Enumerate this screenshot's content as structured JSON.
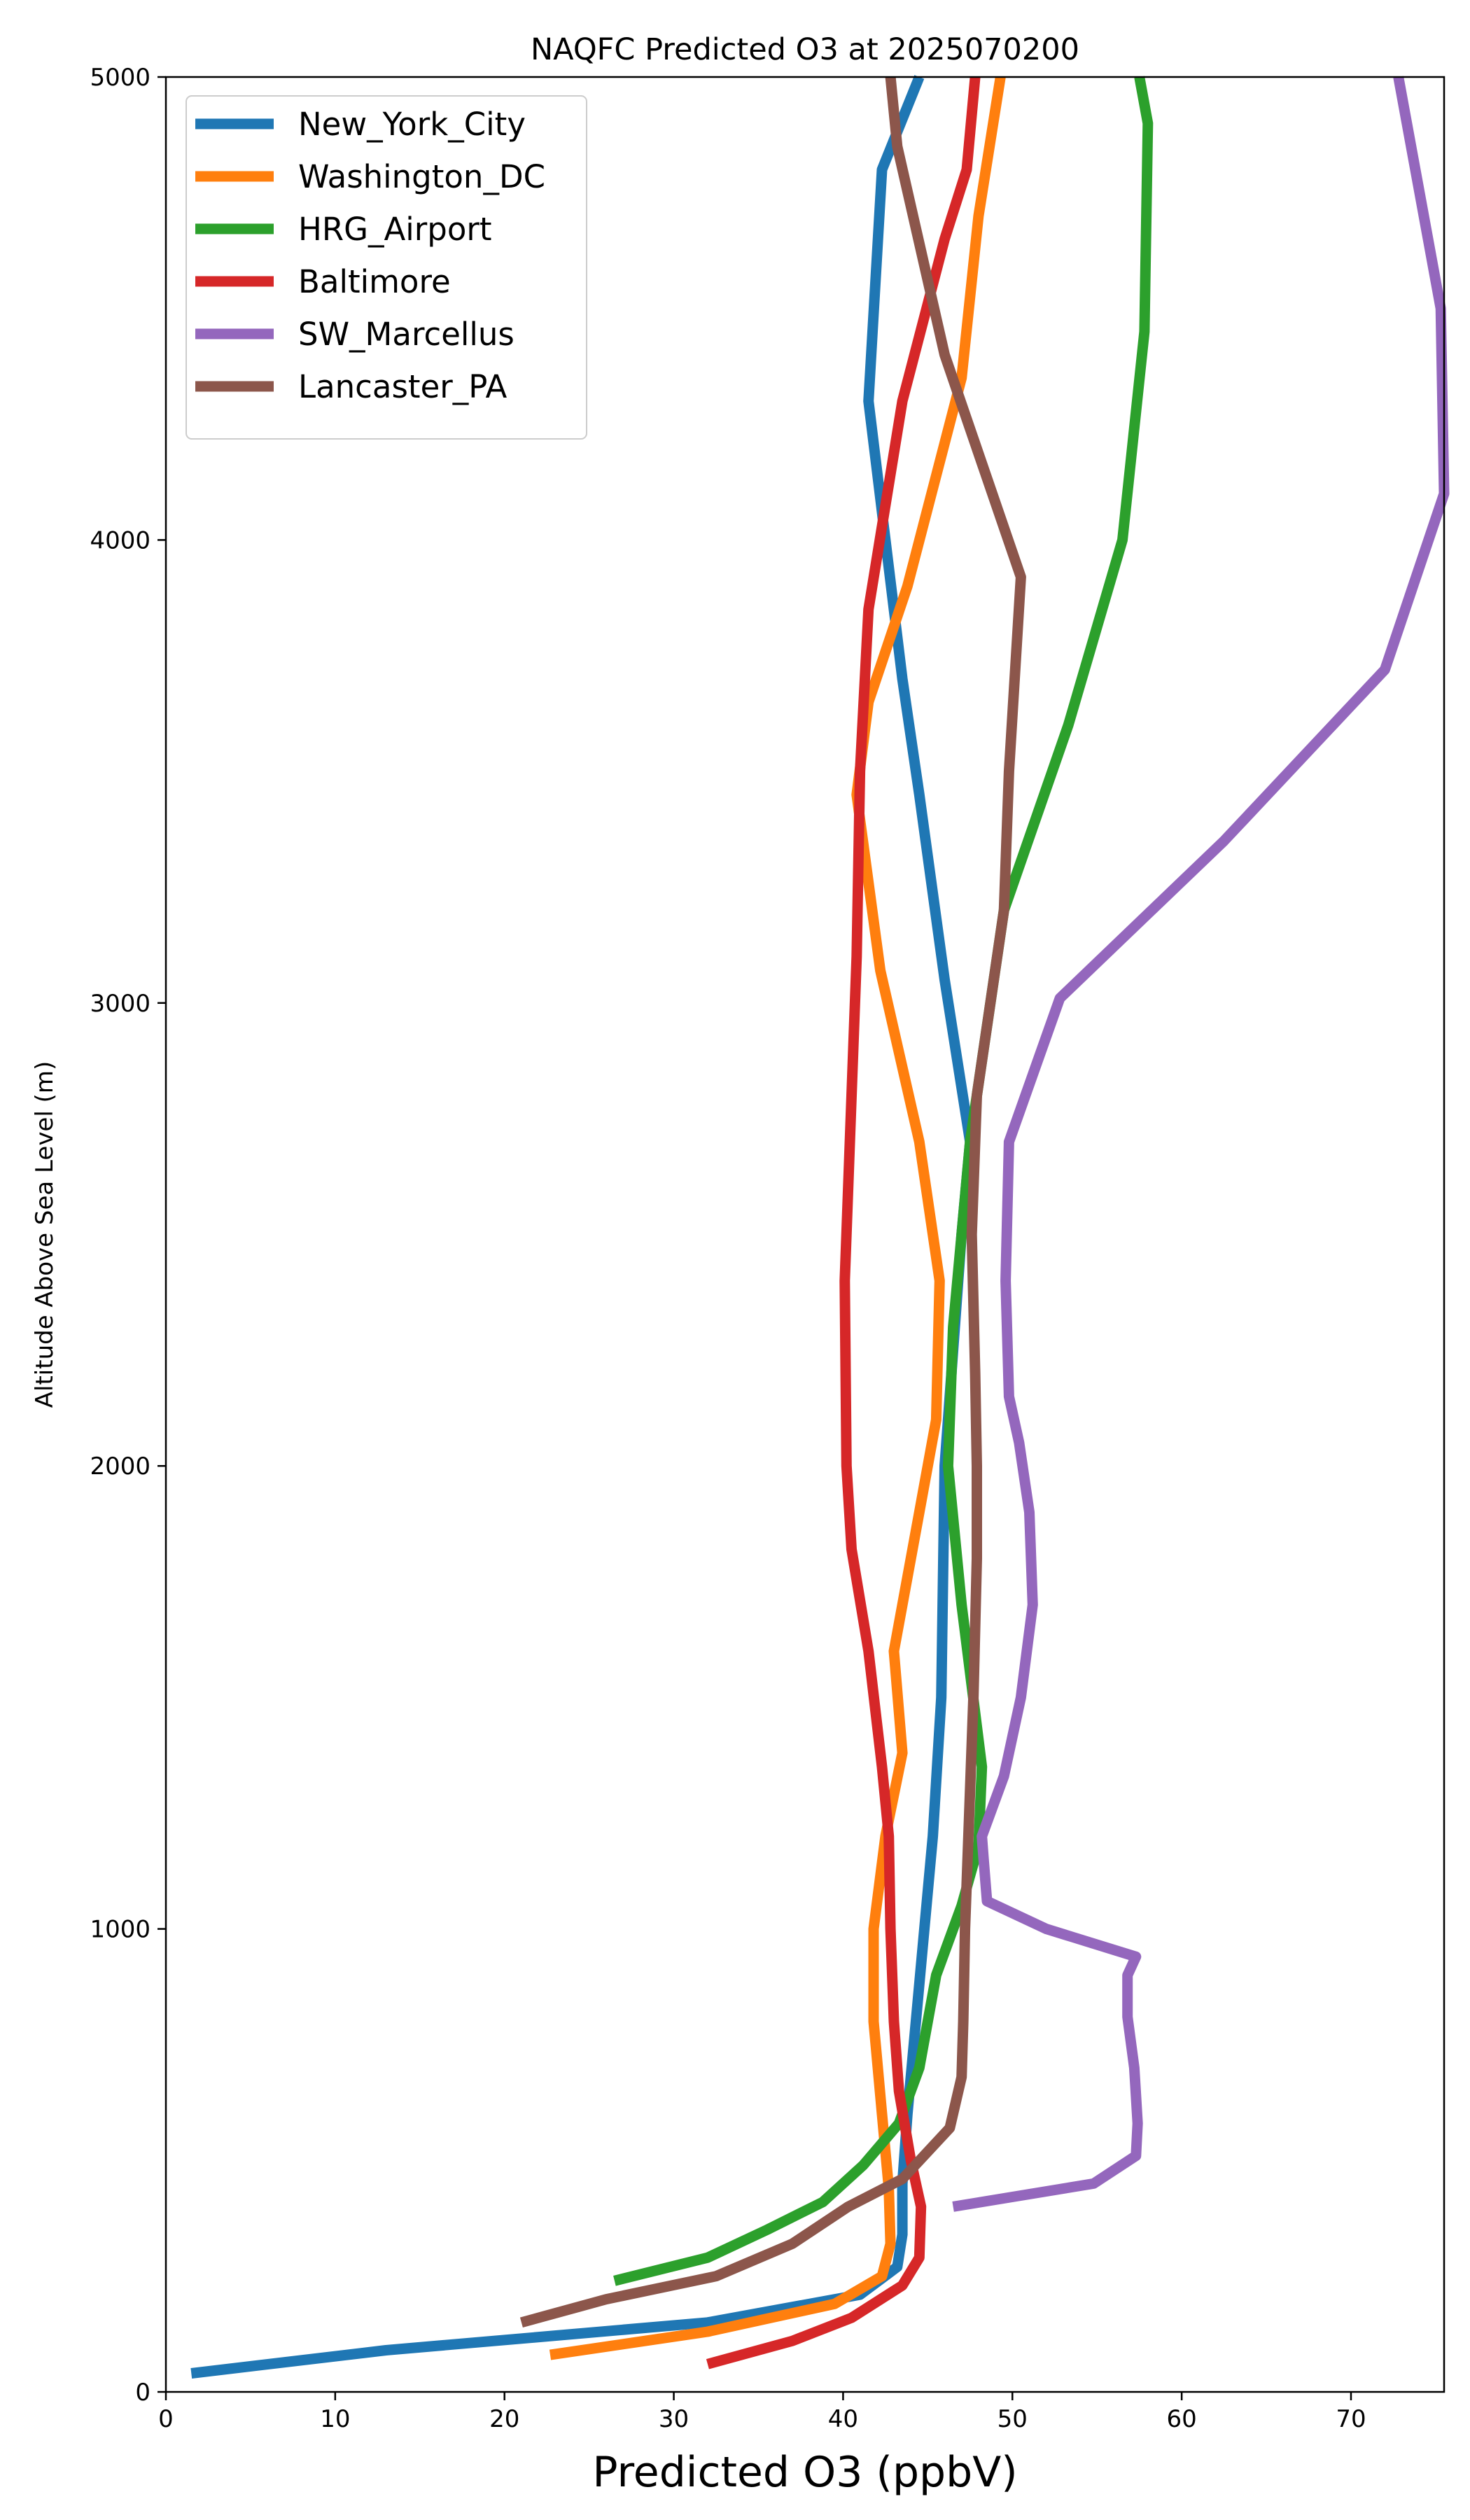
{
  "chart_data": {
    "type": "line",
    "title": "NAQFC Predicted O3 at 2025070200",
    "xlabel": "Predicted O3 (ppbV)",
    "ylabel": "Altitude Above Sea Level (m)",
    "xlim": [
      0,
      75.5
    ],
    "ylim": [
      0,
      5000
    ],
    "xticks": [
      0,
      10,
      20,
      30,
      40,
      50,
      60,
      70
    ],
    "yticks": [
      0,
      1000,
      2000,
      3000,
      4000,
      5000
    ],
    "grid": false,
    "legend_position": "upper-left",
    "series": [
      {
        "name": "New_York_City",
        "color": "#1f77b4",
        "points": [
          [
            1.5,
            40
          ],
          [
            13,
            90
          ],
          [
            32,
            150
          ],
          [
            41,
            210
          ],
          [
            43.2,
            270
          ],
          [
            43.5,
            340
          ],
          [
            43.5,
            450
          ],
          [
            43.8,
            600
          ],
          [
            44.3,
            800
          ],
          [
            44.8,
            1000
          ],
          [
            45.3,
            1200
          ],
          [
            45.8,
            1500
          ],
          [
            46,
            2000
          ],
          [
            47,
            2500
          ],
          [
            47.5,
            2700
          ],
          [
            46,
            3050
          ],
          [
            44.5,
            3450
          ],
          [
            43.5,
            3700
          ],
          [
            41.5,
            4300
          ],
          [
            42.3,
            4800
          ],
          [
            44.5,
            5000
          ]
        ]
      },
      {
        "name": "Washington_DC",
        "color": "#ff7f0e",
        "points": [
          [
            22.7,
            80
          ],
          [
            32,
            130
          ],
          [
            39.5,
            190
          ],
          [
            42.3,
            250
          ],
          [
            42.8,
            320
          ],
          [
            42.7,
            440
          ],
          [
            42.3,
            600
          ],
          [
            41.8,
            800
          ],
          [
            41.8,
            1000
          ],
          [
            42.5,
            1200
          ],
          [
            43.5,
            1380
          ],
          [
            43,
            1600
          ],
          [
            44.5,
            1900
          ],
          [
            45.5,
            2100
          ],
          [
            45.7,
            2400
          ],
          [
            44.5,
            2700
          ],
          [
            42.2,
            3070
          ],
          [
            40.8,
            3450
          ],
          [
            41.5,
            3650
          ],
          [
            43.8,
            3900
          ],
          [
            47,
            4350
          ],
          [
            48,
            4700
          ],
          [
            49.3,
            5000
          ]
        ]
      },
      {
        "name": "HRG_Airport",
        "color": "#2ca02c",
        "points": [
          [
            26.5,
            240
          ],
          [
            32,
            290
          ],
          [
            35.5,
            350
          ],
          [
            38.8,
            410
          ],
          [
            41.2,
            490
          ],
          [
            43.3,
            580
          ],
          [
            44.5,
            700
          ],
          [
            45.5,
            900
          ],
          [
            47,
            1050
          ],
          [
            48,
            1180
          ],
          [
            48.2,
            1350
          ],
          [
            47,
            1700
          ],
          [
            46.2,
            2000
          ],
          [
            46.5,
            2300
          ],
          [
            47.5,
            2700
          ],
          [
            49.5,
            3200
          ],
          [
            53.3,
            3600
          ],
          [
            56.5,
            4000
          ],
          [
            57.8,
            4450
          ],
          [
            58,
            4900
          ],
          [
            57.5,
            5000
          ]
        ]
      },
      {
        "name": "Baltimore",
        "color": "#d62728",
        "points": [
          [
            32,
            60
          ],
          [
            37,
            110
          ],
          [
            40.5,
            160
          ],
          [
            43.5,
            230
          ],
          [
            44.5,
            290
          ],
          [
            44.6,
            400
          ],
          [
            44,
            500
          ],
          [
            43.3,
            650
          ],
          [
            43,
            800
          ],
          [
            42.8,
            1000
          ],
          [
            42.7,
            1200
          ],
          [
            42.3,
            1350
          ],
          [
            41.5,
            1600
          ],
          [
            40.5,
            1820
          ],
          [
            40.2,
            2000
          ],
          [
            40.1,
            2400
          ],
          [
            40.5,
            2800
          ],
          [
            40.8,
            3100
          ],
          [
            41,
            3500
          ],
          [
            41.5,
            3850
          ],
          [
            43.5,
            4300
          ],
          [
            46,
            4650
          ],
          [
            47.3,
            4800
          ],
          [
            47.8,
            5000
          ]
        ]
      },
      {
        "name": "SW_Marcellus",
        "color": "#9467bd",
        "points": [
          [
            46.5,
            400
          ],
          [
            54.8,
            450
          ],
          [
            57.3,
            510
          ],
          [
            57.4,
            580
          ],
          [
            57.2,
            700
          ],
          [
            56.8,
            810
          ],
          [
            56.8,
            900
          ],
          [
            57.3,
            940
          ],
          [
            52,
            1000
          ],
          [
            48.5,
            1060
          ],
          [
            48.3,
            1150
          ],
          [
            48.2,
            1200
          ],
          [
            49.5,
            1330
          ],
          [
            50.5,
            1500
          ],
          [
            51.2,
            1700
          ],
          [
            51,
            1900
          ],
          [
            50.4,
            2050
          ],
          [
            49.8,
            2150
          ],
          [
            49.6,
            2400
          ],
          [
            49.8,
            2700
          ],
          [
            52.8,
            3010
          ],
          [
            62.5,
            3350
          ],
          [
            72,
            3720
          ],
          [
            75.5,
            4100
          ],
          [
            75.3,
            4500
          ],
          [
            72.8,
            5000
          ]
        ]
      },
      {
        "name": "Lancaster_PA",
        "color": "#8c564b",
        "points": [
          [
            21,
            150
          ],
          [
            26,
            200
          ],
          [
            32.5,
            250
          ],
          [
            37,
            320
          ],
          [
            40.3,
            400
          ],
          [
            43.5,
            460
          ],
          [
            46.3,
            570
          ],
          [
            47,
            680
          ],
          [
            47.1,
            800
          ],
          [
            47.2,
            1000
          ],
          [
            47.4,
            1200
          ],
          [
            47.7,
            1500
          ],
          [
            47.9,
            1800
          ],
          [
            47.9,
            2000
          ],
          [
            47.8,
            2200
          ],
          [
            47.6,
            2500
          ],
          [
            47.9,
            2800
          ],
          [
            48.5,
            2950
          ],
          [
            49.5,
            3200
          ],
          [
            49.8,
            3500
          ],
          [
            50.5,
            3920
          ],
          [
            46,
            4400
          ],
          [
            43.2,
            4850
          ],
          [
            42.8,
            5000
          ]
        ]
      }
    ]
  }
}
